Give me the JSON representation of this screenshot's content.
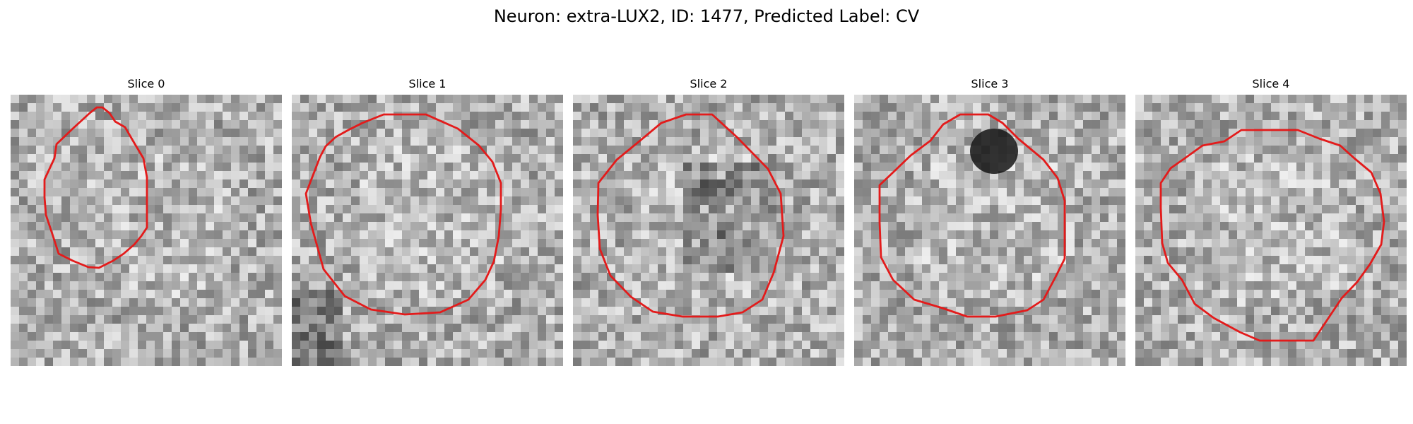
{
  "figure": {
    "title": "Neuron: extra-LUX2, ID: 1477, Predicted Label: CV"
  },
  "slices": [
    {
      "label": "Slice 0"
    },
    {
      "label": "Slice 1"
    },
    {
      "label": "Slice 2"
    },
    {
      "label": "Slice 3"
    },
    {
      "label": "Slice 4"
    }
  ],
  "colors": {
    "contour": "#e31b1b",
    "background": "#ffffff"
  }
}
